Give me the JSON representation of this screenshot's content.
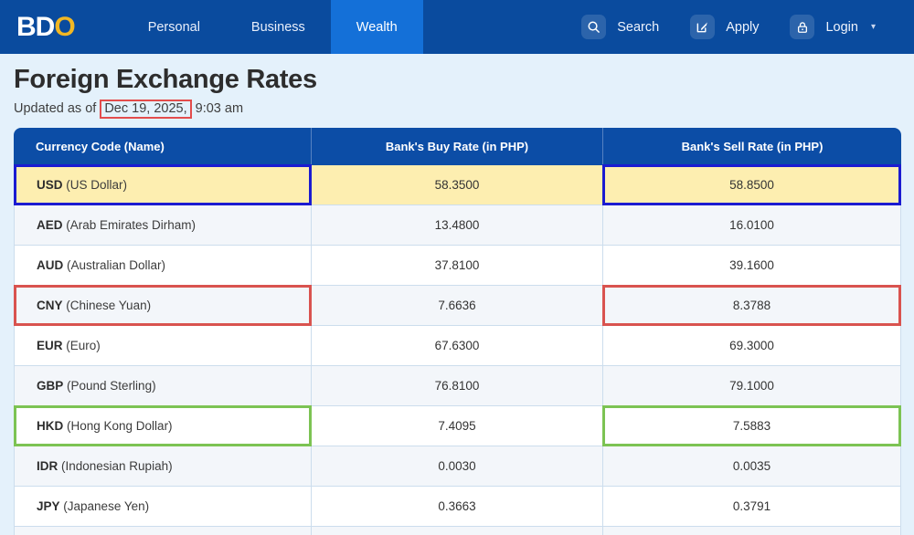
{
  "navbar": {
    "logo": {
      "part1": "BD",
      "part2": "O"
    },
    "links": [
      {
        "label": "Personal",
        "active": false
      },
      {
        "label": "Business",
        "active": false
      },
      {
        "label": "Wealth",
        "active": true
      }
    ],
    "actions": [
      {
        "icon": "search-icon",
        "label": "Search"
      },
      {
        "icon": "apply-icon",
        "label": "Apply"
      },
      {
        "icon": "lock-icon",
        "label": "Login",
        "caret": "▾"
      }
    ]
  },
  "page": {
    "title": "Foreign Exchange Rates",
    "updated_prefix": "Updated as of ",
    "updated_date": "Dec 19, 2025,",
    "updated_time": " 9:03 am"
  },
  "table": {
    "headers": [
      "Currency Code (Name)",
      "Bank's Buy Rate (in PHP)",
      "Bank's Sell Rate (in PHP)"
    ],
    "rows": [
      {
        "code": "USD",
        "name": "(US Dollar)",
        "buy": "58.3500",
        "sell": "58.8500",
        "highlight": "yellow",
        "annotation": "blue"
      },
      {
        "code": "AED",
        "name": "(Arab Emirates Dirham)",
        "buy": "13.4800",
        "sell": "16.0100",
        "highlight": null,
        "annotation": null
      },
      {
        "code": "AUD",
        "name": "(Australian Dollar)",
        "buy": "37.8100",
        "sell": "39.1600",
        "highlight": null,
        "annotation": null
      },
      {
        "code": "CNY",
        "name": "(Chinese Yuan)",
        "buy": "7.6636",
        "sell": "8.3788",
        "highlight": null,
        "annotation": "red"
      },
      {
        "code": "EUR",
        "name": "(Euro)",
        "buy": "67.6300",
        "sell": "69.3000",
        "highlight": null,
        "annotation": null
      },
      {
        "code": "GBP",
        "name": "(Pound Sterling)",
        "buy": "76.8100",
        "sell": "79.1000",
        "highlight": null,
        "annotation": null
      },
      {
        "code": "HKD",
        "name": "(Hong Kong Dollar)",
        "buy": "7.4095",
        "sell": "7.5883",
        "highlight": null,
        "annotation": "green"
      },
      {
        "code": "IDR",
        "name": "(Indonesian Rupiah)",
        "buy": "0.0030",
        "sell": "0.0035",
        "highlight": null,
        "annotation": null
      },
      {
        "code": "JPY",
        "name": "(Japanese Yen)",
        "buy": "0.3663",
        "sell": "0.3791",
        "highlight": null,
        "annotation": null
      }
    ]
  },
  "colors": {
    "navbar": "#0a4b9e",
    "active_tab": "#1470d8",
    "table_header": "#0c4da6",
    "row_highlight": "#fdeeb0",
    "row_alt": "#f3f6fa",
    "row_base": "#ffffff",
    "annotation_blue": "#1b1bd1",
    "annotation_red": "#d9534f",
    "annotation_green": "#7cc353",
    "date_box_red": "#e34c4c",
    "logo_gold": "#f2b723"
  }
}
